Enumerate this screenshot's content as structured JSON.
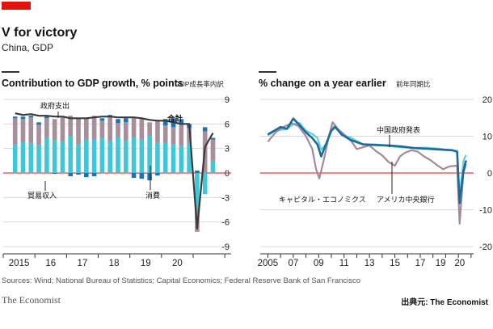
{
  "header": {
    "accent_color": "#e3120b",
    "title": "V for victory",
    "subtitle": "China, GDP"
  },
  "left_panel": {
    "title": "Contribution to GDP growth, % points",
    "title_jp": "GDP成長率内訳"
  },
  "right_panel": {
    "title": "% change on a year earlier",
    "title_jp": "前年同期比"
  },
  "footer": {
    "source": "Sources: Wind; National Bureau of Statistics; Capital Economics; Federal Reserve Bank of San Francisco",
    "brand": "The Economist",
    "credit": "出典元: The Economist"
  },
  "colors": {
    "consumption": "#3ec7d9",
    "government": "#a88d9a",
    "trade": "#1874b8",
    "total_line": "#3a3a3a",
    "official": "#5fd0e0",
    "capital_economics": "#a4899a",
    "frbsf": "#1c6a9a",
    "zero_line": "#e3120b",
    "grid": "#d8d8d8"
  },
  "chart_data": [
    {
      "type": "bar",
      "stacked": true,
      "x": [
        2014.375,
        2014.625,
        2014.875,
        2015.125,
        2015.375,
        2015.625,
        2015.875,
        2016.125,
        2016.375,
        2016.625,
        2016.875,
        2017.125,
        2017.375,
        2017.625,
        2017.875,
        2018.125,
        2018.375,
        2018.625,
        2018.875,
        2019.125,
        2019.375,
        2019.625,
        2019.875,
        2020.125,
        2020.375,
        2020.625
      ],
      "x_ticks": [
        "2015",
        "16",
        "17",
        "18",
        "19",
        "20"
      ],
      "ylim": [
        -9,
        9
      ],
      "y_ticks": [
        9,
        6,
        3,
        0,
        -3,
        -6,
        -9
      ],
      "grid": true,
      "series": [
        {
          "name": "消費",
          "color_key": "consumption",
          "values": [
            3.5,
            3.8,
            3.7,
            3.4,
            4.3,
            4.0,
            3.9,
            4.6,
            3.5,
            4.1,
            4.1,
            4.3,
            3.9,
            4.4,
            4.0,
            4.4,
            4.1,
            4.6,
            3.7,
            3.7,
            3.5,
            3.3,
            3.7,
            -4.4,
            -2.6,
            1.5
          ]
        },
        {
          "name": "政府支出",
          "color_key": "government",
          "values": [
            3.2,
            2.8,
            3.1,
            2.5,
            2.4,
            2.6,
            2.9,
            2.4,
            3.2,
            2.6,
            2.9,
            2.1,
            2.9,
            1.7,
            2.2,
            2.3,
            2.5,
            1.6,
            2.8,
            2.1,
            2.1,
            2.6,
            1.8,
            -2.8,
            5.1,
            2.6
          ]
        },
        {
          "name": "貿易収入",
          "color_key": "trade",
          "values": [
            0.2,
            0.3,
            0.2,
            0.3,
            0.2,
            -0.1,
            0.1,
            -0.4,
            -0.2,
            -0.5,
            -0.4,
            0.3,
            0.3,
            0.5,
            0.5,
            -0.6,
            -0.7,
            -0.9,
            -0.3,
            0.8,
            1.1,
            0.7,
            0.5,
            0.3,
            0.5,
            0.2
          ]
        }
      ],
      "total": {
        "name": "合計",
        "color_key": "total_line",
        "values": [
          7.3,
          7.1,
          7.2,
          7.0,
          7.0,
          6.9,
          6.9,
          6.7,
          6.7,
          6.7,
          6.8,
          6.9,
          6.9,
          6.8,
          6.8,
          6.8,
          6.7,
          6.5,
          6.4,
          6.4,
          6.2,
          6.0,
          6.0,
          -6.8,
          3.2,
          4.9
        ]
      },
      "annotations": [
        "政府支出",
        "貿易収入",
        "消費",
        "合計"
      ]
    },
    {
      "type": "line",
      "x_ticks": [
        "2005",
        "07",
        "09",
        "11",
        "13",
        "15",
        "17",
        "19",
        "20"
      ],
      "ylim": [
        -20,
        20
      ],
      "y_ticks": [
        20,
        10,
        0,
        -10,
        -20
      ],
      "grid": true,
      "series": [
        {
          "name": "中国政府発表",
          "color_key": "official",
          "x": [
            2005.0,
            2005.5,
            2006.0,
            2006.5,
            2007.0,
            2007.5,
            2008.0,
            2008.5,
            2008.9,
            2009.2,
            2009.6,
            2010.0,
            2010.3,
            2010.8,
            2011.5,
            2012.5,
            2013.5,
            2014.5,
            2015.5,
            2016.5,
            2017.5,
            2018.5,
            2019.5,
            2019.9,
            2020.1,
            2020.4,
            2020.6
          ],
          "y": [
            10.2,
            11.3,
            11.7,
            12.0,
            13.2,
            13.6,
            11.5,
            10.6,
            9.6,
            6.3,
            8.0,
            12.0,
            13.0,
            10.3,
            9.7,
            7.7,
            7.8,
            7.3,
            7.0,
            6.8,
            6.9,
            6.6,
            6.1,
            6.0,
            -6.8,
            3.2,
            4.9
          ]
        },
        {
          "name": "キャピタル・エコノミクス",
          "color_key": "capital_economics",
          "x": [
            2005.0,
            2005.6,
            2006.2,
            2006.9,
            2007.4,
            2008.0,
            2008.5,
            2008.8,
            2009.05,
            2009.4,
            2009.8,
            2010.1,
            2010.5,
            2011.0,
            2011.5,
            2012.0,
            2012.5,
            2013.0,
            2013.5,
            2014.0,
            2014.5,
            2015.0,
            2015.4,
            2015.8,
            2016.3,
            2016.8,
            2017.3,
            2017.8,
            2018.3,
            2018.8,
            2019.3,
            2019.9,
            2020.1,
            2020.4,
            2020.6
          ],
          "y": [
            8.5,
            11.0,
            12.5,
            13.5,
            12.8,
            10.0,
            6.5,
            1.0,
            -1.5,
            3.5,
            10.0,
            13.8,
            12.0,
            10.5,
            9.0,
            6.5,
            7.0,
            7.5,
            6.0,
            4.8,
            3.0,
            2.0,
            4.5,
            5.5,
            6.2,
            5.8,
            4.5,
            3.5,
            2.2,
            1.0,
            1.8,
            2.0,
            -13.8,
            0.0,
            2.4
          ]
        },
        {
          "name": "アメリカ中央銀行",
          "color_key": "frbsf",
          "x": [
            2005.0,
            2005.5,
            2006.0,
            2006.5,
            2007.0,
            2007.5,
            2008.0,
            2008.5,
            2008.9,
            2009.2,
            2009.6,
            2010.0,
            2010.3,
            2010.8,
            2011.5,
            2012.5,
            2013.5,
            2014.5,
            2015.5,
            2016.5,
            2017.5,
            2018.5,
            2019.5,
            2019.9,
            2020.1,
            2020.4,
            2020.6
          ],
          "y": [
            10.5,
            11.5,
            12.5,
            12.0,
            14.8,
            13.0,
            11.0,
            9.5,
            7.8,
            4.5,
            8.0,
            11.5,
            12.5,
            10.5,
            9.0,
            7.8,
            7.6,
            7.5,
            7.2,
            6.8,
            6.6,
            6.4,
            6.2,
            5.8,
            -8.2,
            0.5,
            3.4
          ]
        }
      ],
      "annotations": [
        "中国政府発表",
        "キャピタル・エコノミクス",
        "アメリカ中央銀行"
      ]
    }
  ]
}
